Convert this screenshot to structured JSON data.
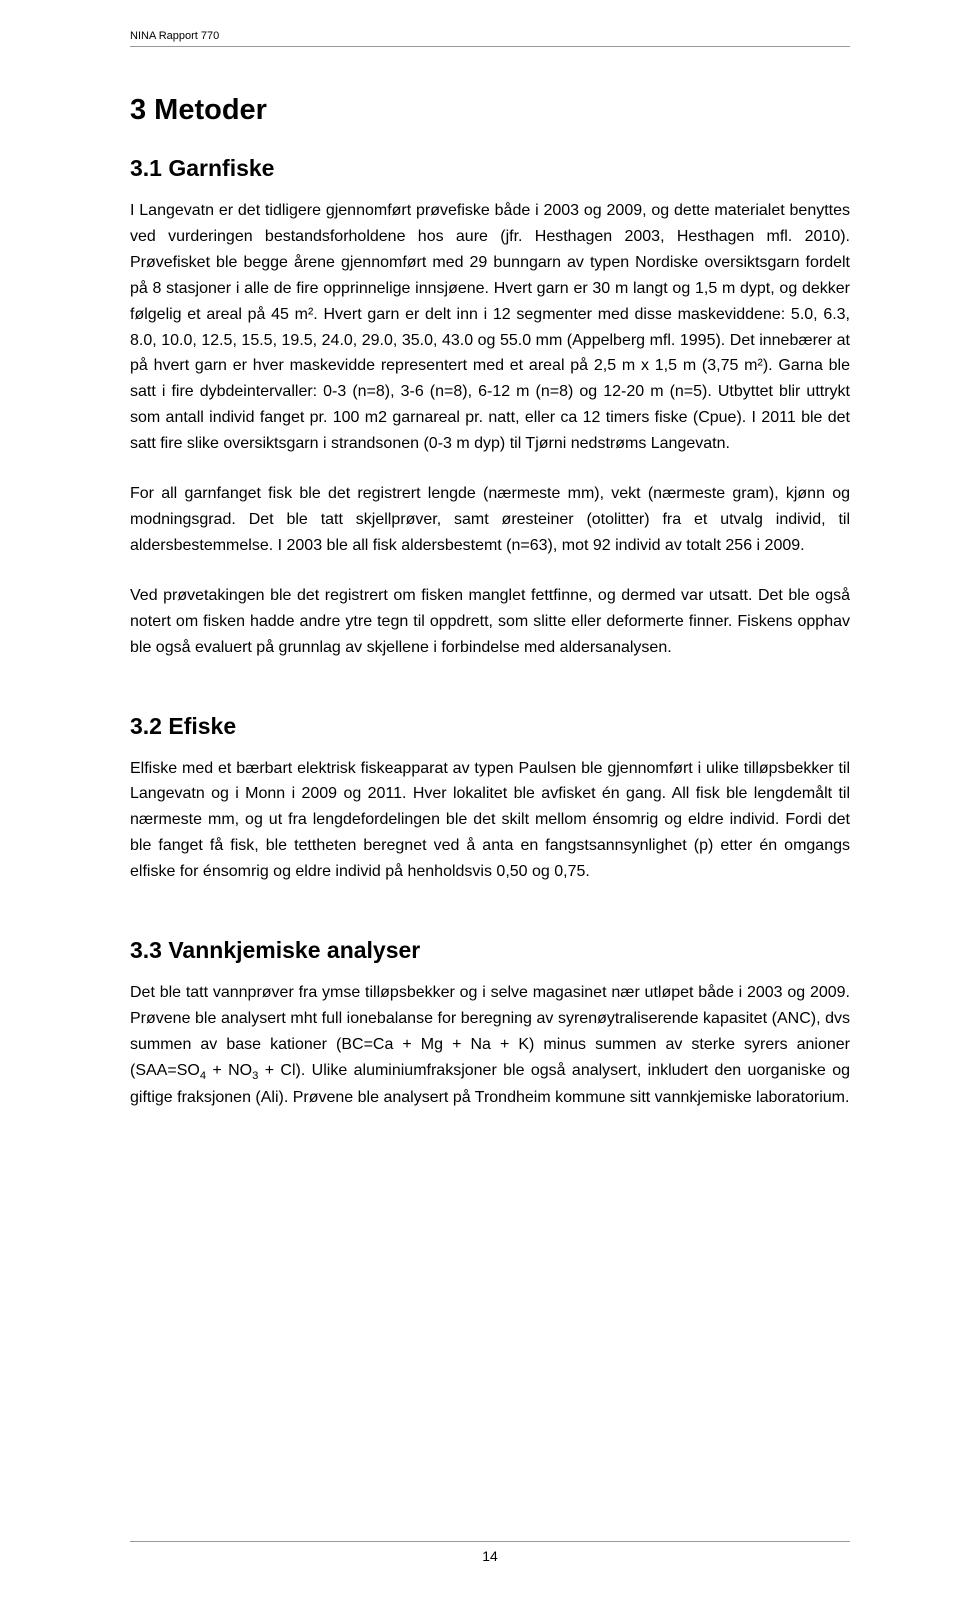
{
  "document": {
    "running_header": "NINA Rapport 770",
    "page_number": "14",
    "background_color": "#ffffff",
    "text_color": "#000000",
    "rule_color": "#999999",
    "body_fontsize": 16,
    "h1_fontsize": 29,
    "h2_fontsize": 23,
    "line_height": 1.62
  },
  "sections": {
    "main": {
      "title": "3 Metoder"
    },
    "s31": {
      "title": "3.1 Garnfiske",
      "p1": "I Langevatn er det tidligere gjennomført prøvefiske både i 2003 og 2009, og dette materialet benyttes ved vurderingen bestandsforholdene hos aure (jfr. Hesthagen 2003, Hesthagen mfl. 2010). Prøvefisket ble begge årene gjennomført med 29 bunngarn av typen Nordiske oversiktsgarn fordelt på 8 stasjoner i alle de fire opprinnelige innsjøene. Hvert garn er 30 m langt og 1,5 m dypt, og dekker følgelig et areal på 45 m². Hvert garn er delt inn i 12 segmenter med disse maskeviddene: 5.0, 6.3, 8.0, 10.0, 12.5, 15.5, 19.5, 24.0, 29.0, 35.0, 43.0 og 55.0 mm (Appelberg mfl. 1995). Det innebærer at på hvert garn er hver maskevidde representert med et areal på 2,5 m x 1,5 m (3,75 m²). Garna ble satt i fire dybdeintervaller: 0-3 (n=8), 3-6 (n=8), 6-12 m (n=8) og 12-20 m (n=5). Utbyttet blir uttrykt som antall individ fanget pr. 100 m2 garnareal pr. natt, eller ca 12 timers fiske (Cpue). I 2011 ble det satt fire slike oversiktsgarn i strandsonen (0-3 m dyp) til Tjørni nedstrøms Langevatn.",
      "p2": "For all garnfanget fisk ble det registrert lengde (nærmeste mm), vekt (nærmeste gram), kjønn og modningsgrad. Det ble tatt skjellprøver, samt øresteiner (otolitter) fra et utvalg individ, til aldersbestemmelse. I 2003 ble all fisk aldersbestemt (n=63), mot 92 individ av totalt 256 i 2009.",
      "p3": "Ved prøvetakingen ble det registrert om fisken manglet fettfinne, og dermed var utsatt. Det ble også notert om fisken hadde andre ytre tegn til oppdrett, som slitte eller deformerte finner. Fiskens opphav ble også evaluert på grunnlag av skjellene i forbindelse med aldersanalysen."
    },
    "s32": {
      "title": "3.2 Efiske",
      "p1": "Elfiske med et bærbart elektrisk fiskeapparat av typen Paulsen ble gjennomført i ulike tilløpsbekker til Langevatn og i Monn i 2009 og 2011. Hver lokalitet ble avfisket én gang. All fisk ble lengdemålt til nærmeste mm, og ut fra lengdefordelingen ble det skilt mellom énsomrig og eldre individ. Fordi det ble fanget få fisk, ble tettheten beregnet ved å anta en fangstsannsynlighet (p) etter én omgangs elfiske for énsomrig og eldre individ på henholdsvis 0,50 og 0,75."
    },
    "s33": {
      "title": "3.3 Vannkjemiske analyser",
      "p1_pre": "Det ble tatt vannprøver fra ymse tilløpsbekker og i selve magasinet nær utløpet både i 2003 og 2009. Prøvene ble analysert mht full ionebalanse for beregning av syrenøytraliserende kapasitet (ANC), dvs summen av base kationer (BC=Ca + Mg + Na + K) minus summen av sterke syrers anioner (SAA=SO",
      "p1_sub1": "4",
      "p1_mid1": " + NO",
      "p1_sub2": "3",
      "p1_post": " + Cl). Ulike aluminiumfraksjoner ble også analysert, inkludert den uorganiske og giftige fraksjonen (Ali). Prøvene ble analysert på Trondheim kommune sitt vannkjemiske laboratorium."
    }
  }
}
